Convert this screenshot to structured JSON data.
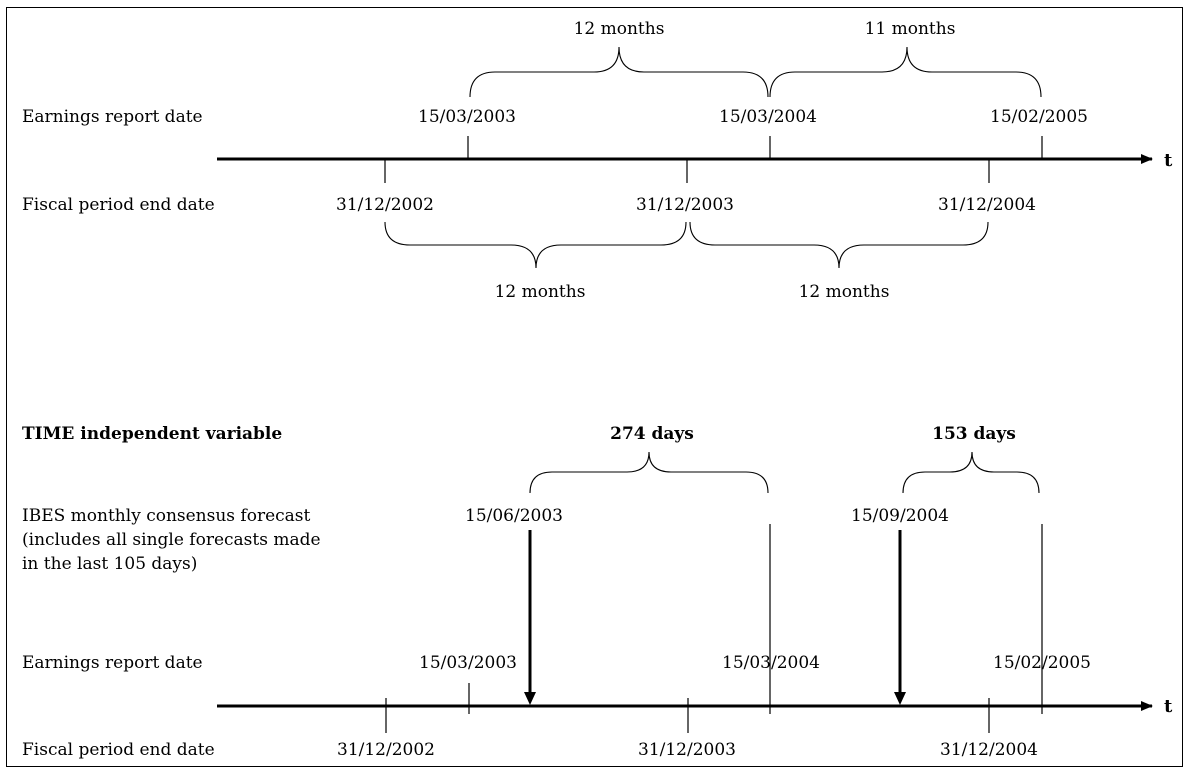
{
  "top": {
    "earnings_label": "Earnings report date",
    "fiscal_label": "Fiscal period end date",
    "earnings_dates": [
      "15/03/2003",
      "15/03/2004",
      "15/02/2005"
    ],
    "fiscal_dates": [
      "31/12/2002",
      "31/12/2003",
      "31/12/2004"
    ],
    "earnings_spans": [
      "12 months",
      "11 months"
    ],
    "fiscal_spans": [
      "12 months",
      "12 months"
    ],
    "axis_label": "t"
  },
  "bottom": {
    "heading": "TIME independent variable",
    "ibes_label_lines": [
      "IBES monthly consensus forecast",
      "(includes all single forecasts made",
      "in the last 105 days)"
    ],
    "forecast_dates": [
      "15/06/2003",
      "15/09/2004"
    ],
    "day_spans": [
      "274 days",
      "153 days"
    ],
    "earnings_label": "Earnings report date",
    "fiscal_label": "Fiscal period end date",
    "earnings_dates": [
      "15/03/2003",
      "15/03/2004",
      "15/02/2005"
    ],
    "fiscal_dates": [
      "31/12/2002",
      "31/12/2003",
      "31/12/2004"
    ],
    "axis_label": "t"
  }
}
